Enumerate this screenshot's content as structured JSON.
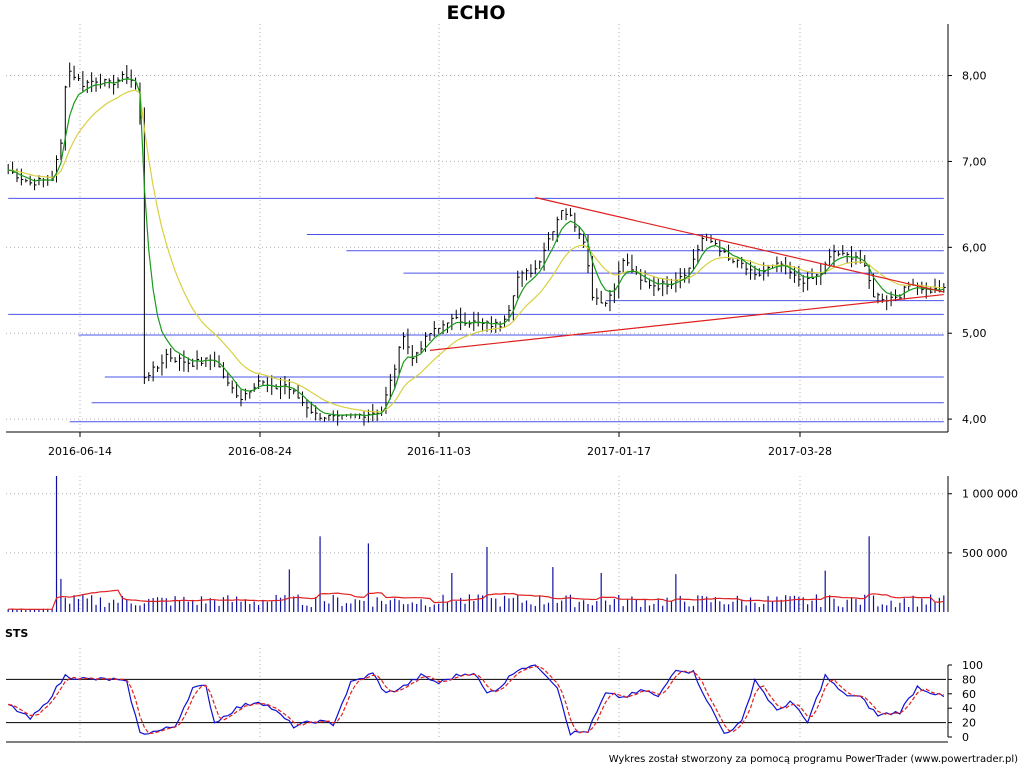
{
  "title": "ECHO",
  "credit": "Wykres został stworzony za pomocą programu PowerTrader (www.powertrader.pl)",
  "colors": {
    "price_bars": "#000000",
    "ma_fast": "#1a9a1a",
    "ma_slow": "#d8d040",
    "levels": "#4a55e8",
    "trendlines": "#e02020",
    "volume_bars": "#1010a0",
    "volume_avg": "#e02020",
    "sts_k": "#1010d0",
    "sts_d": "#e02020",
    "grid": "#b0b0b0"
  },
  "chart_data": [
    {
      "type": "ohlc",
      "panel": "price",
      "title": "ECHO",
      "x_tick_labels": [
        "2016-06-14",
        "2016-08-24",
        "2016-11-03",
        "2017-01-17",
        "2017-03-28"
      ],
      "y_tick_labels": [
        "4,00",
        "5,00",
        "6,00",
        "7,00",
        "8,00"
      ],
      "y_ticks": [
        4,
        5,
        6,
        7,
        8
      ],
      "ylim": [
        3.85,
        8.6
      ],
      "grid": true,
      "close_anchors": [
        [
          0,
          6.9
        ],
        [
          5,
          6.75
        ],
        [
          10,
          6.8
        ],
        [
          12,
          7.2
        ],
        [
          13,
          7.9
        ],
        [
          14,
          8.05
        ],
        [
          17,
          7.9
        ],
        [
          20,
          7.95
        ],
        [
          23,
          7.9
        ],
        [
          27,
          8.0
        ],
        [
          29,
          7.9
        ],
        [
          30,
          7.5
        ],
        [
          31,
          4.5
        ],
        [
          34,
          4.6
        ],
        [
          36,
          4.75
        ],
        [
          38,
          4.7
        ],
        [
          42,
          4.65
        ],
        [
          47,
          4.7
        ],
        [
          50,
          4.4
        ],
        [
          53,
          4.25
        ],
        [
          57,
          4.45
        ],
        [
          60,
          4.35
        ],
        [
          63,
          4.4
        ],
        [
          67,
          4.2
        ],
        [
          70,
          4.05
        ],
        [
          75,
          4.0
        ],
        [
          80,
          4.05
        ],
        [
          85,
          4.1
        ],
        [
          88,
          4.6
        ],
        [
          90,
          5.0
        ],
        [
          92,
          4.7
        ],
        [
          96,
          5.0
        ],
        [
          98,
          5.05
        ],
        [
          100,
          5.15
        ],
        [
          104,
          5.15
        ],
        [
          108,
          5.1
        ],
        [
          112,
          5.1
        ],
        [
          114,
          5.3
        ],
        [
          116,
          5.65
        ],
        [
          120,
          5.75
        ],
        [
          123,
          6.1
        ],
        [
          126,
          6.45
        ],
        [
          128,
          6.35
        ],
        [
          131,
          6.1
        ],
        [
          133,
          5.45
        ],
        [
          136,
          5.35
        ],
        [
          138,
          5.55
        ],
        [
          140,
          5.85
        ],
        [
          142,
          5.75
        ],
        [
          144,
          5.6
        ],
        [
          148,
          5.55
        ],
        [
          151,
          5.6
        ],
        [
          155,
          5.75
        ],
        [
          158,
          6.1
        ],
        [
          161,
          6.05
        ],
        [
          164,
          5.85
        ],
        [
          167,
          5.8
        ],
        [
          170,
          5.65
        ],
        [
          173,
          5.75
        ],
        [
          176,
          5.8
        ],
        [
          179,
          5.65
        ],
        [
          182,
          5.6
        ],
        [
          185,
          5.7
        ],
        [
          188,
          5.95
        ],
        [
          190,
          5.9
        ],
        [
          193,
          5.9
        ],
        [
          195,
          5.75
        ],
        [
          197,
          5.45
        ],
        [
          200,
          5.4
        ],
        [
          203,
          5.45
        ],
        [
          206,
          5.6
        ],
        [
          209,
          5.5
        ],
        [
          213,
          5.5
        ]
      ],
      "bar_count": 214,
      "horizontal_levels": [
        {
          "price": 6.57,
          "from_bar": 0,
          "to_bar": 213
        },
        {
          "price": 6.15,
          "from_bar": 68,
          "to_bar": 213
        },
        {
          "price": 5.96,
          "from_bar": 77,
          "to_bar": 213
        },
        {
          "price": 5.7,
          "from_bar": 90,
          "to_bar": 213
        },
        {
          "price": 5.38,
          "from_bar": 136,
          "to_bar": 213
        },
        {
          "price": 5.22,
          "from_bar": 0,
          "to_bar": 213
        },
        {
          "price": 4.98,
          "from_bar": 16,
          "to_bar": 213
        },
        {
          "price": 4.49,
          "from_bar": 22,
          "to_bar": 213
        },
        {
          "price": 4.19,
          "from_bar": 19,
          "to_bar": 213
        },
        {
          "price": 3.97,
          "from_bar": 14,
          "to_bar": 213
        }
      ],
      "trendlines": [
        {
          "from": [
            96,
            4.8
          ],
          "to": [
            213,
            5.45
          ]
        },
        {
          "from": [
            120,
            6.58
          ],
          "to": [
            213,
            5.48
          ]
        }
      ],
      "moving_averages": [
        {
          "name": "fast",
          "period": 5
        },
        {
          "name": "slow",
          "period": 15
        }
      ]
    },
    {
      "type": "bar",
      "panel": "volume",
      "y_tick_labels": [
        "500 000",
        "1 000 000"
      ],
      "y_ticks": [
        500000,
        1000000
      ],
      "ylim": [
        0,
        1150000
      ],
      "spikes": [
        [
          11,
          1150000
        ],
        [
          12,
          280000
        ],
        [
          71,
          640000
        ],
        [
          82,
          580000
        ],
        [
          109,
          550000
        ],
        [
          124,
          380000
        ],
        [
          196,
          640000
        ],
        [
          186,
          350000
        ],
        [
          64,
          360000
        ],
        [
          101,
          330000
        ],
        [
          135,
          330000
        ],
        [
          152,
          320000
        ]
      ],
      "average_period": 15
    },
    {
      "type": "line",
      "panel": "sts",
      "label": "STS",
      "y_tick_labels": [
        "0",
        "20",
        "40",
        "60",
        "80",
        "100"
      ],
      "y_ticks": [
        0,
        20,
        40,
        60,
        80,
        100
      ],
      "ylim": [
        0,
        100
      ],
      "reference_lines": [
        20,
        80
      ],
      "series": [
        {
          "key": "k",
          "style": "solid"
        },
        {
          "key": "d",
          "style": "dashed"
        }
      ],
      "k_anchors": [
        [
          0,
          45
        ],
        [
          5,
          25
        ],
        [
          8,
          42
        ],
        [
          13,
          85
        ],
        [
          18,
          80
        ],
        [
          24,
          80
        ],
        [
          27,
          75
        ],
        [
          30,
          5
        ],
        [
          34,
          8
        ],
        [
          38,
          15
        ],
        [
          42,
          68
        ],
        [
          45,
          70
        ],
        [
          47,
          20
        ],
        [
          52,
          40
        ],
        [
          57,
          50
        ],
        [
          60,
          40
        ],
        [
          65,
          15
        ],
        [
          70,
          22
        ],
        [
          74,
          18
        ],
        [
          78,
          75
        ],
        [
          83,
          88
        ],
        [
          86,
          60
        ],
        [
          90,
          70
        ],
        [
          94,
          85
        ],
        [
          98,
          75
        ],
        [
          102,
          85
        ],
        [
          106,
          90
        ],
        [
          109,
          60
        ],
        [
          112,
          70
        ],
        [
          116,
          95
        ],
        [
          120,
          100
        ],
        [
          122,
          90
        ],
        [
          125,
          70
        ],
        [
          128,
          5
        ],
        [
          132,
          8
        ],
        [
          136,
          60
        ],
        [
          140,
          55
        ],
        [
          145,
          65
        ],
        [
          148,
          55
        ],
        [
          152,
          95
        ],
        [
          156,
          90
        ],
        [
          160,
          40
        ],
        [
          163,
          5
        ],
        [
          167,
          20
        ],
        [
          170,
          80
        ],
        [
          175,
          35
        ],
        [
          178,
          50
        ],
        [
          182,
          20
        ],
        [
          186,
          85
        ],
        [
          190,
          60
        ],
        [
          194,
          55
        ],
        [
          198,
          30
        ],
        [
          203,
          35
        ],
        [
          207,
          70
        ],
        [
          213,
          55
        ]
      ]
    }
  ]
}
